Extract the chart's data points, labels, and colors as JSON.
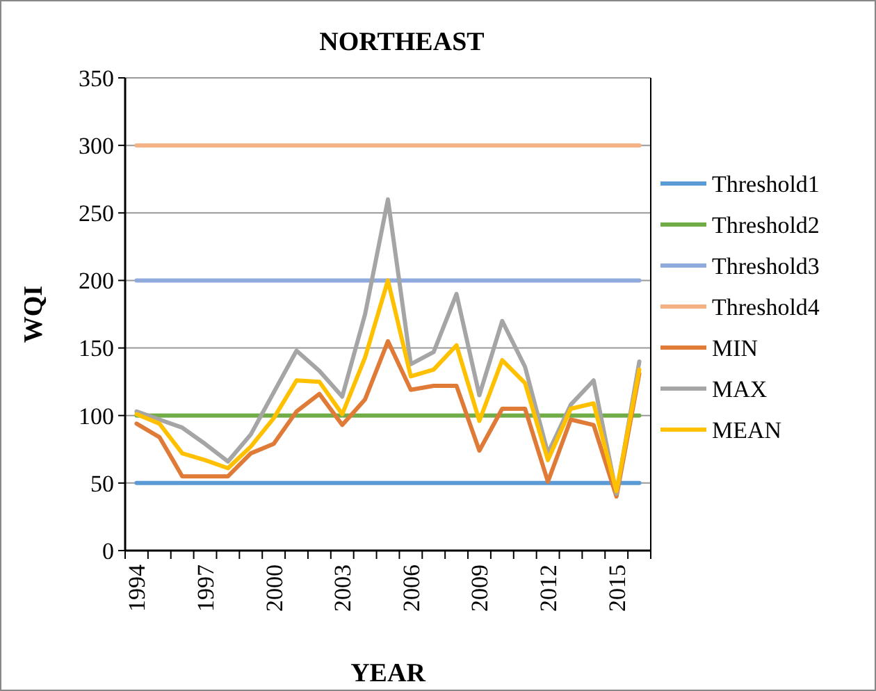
{
  "chart_data": {
    "type": "line",
    "title": "NORTHEAST",
    "xlabel": "YEAR",
    "ylabel": "WQI",
    "categories": [
      "1994",
      null,
      null,
      "1997",
      null,
      null,
      "2000",
      null,
      null,
      "2003",
      null,
      null,
      "2006",
      null,
      null,
      "2009",
      null,
      null,
      "2012",
      null,
      null,
      "2015",
      null
    ],
    "series": [
      {
        "name": "Threshold1",
        "color": "#5b9bd5",
        "values": [
          50,
          50,
          50,
          50,
          50,
          50,
          50,
          50,
          50,
          50,
          50,
          50,
          50,
          50,
          50,
          50,
          50,
          50,
          50,
          50,
          50,
          50,
          50
        ]
      },
      {
        "name": "Threshold2",
        "color": "#70ad47",
        "values": [
          100,
          100,
          100,
          100,
          100,
          100,
          100,
          100,
          100,
          100,
          100,
          100,
          100,
          100,
          100,
          100,
          100,
          100,
          100,
          100,
          100,
          100,
          100
        ]
      },
      {
        "name": "Threshold3",
        "color": "#8faadc",
        "values": [
          200,
          200,
          200,
          200,
          200,
          200,
          200,
          200,
          200,
          200,
          200,
          200,
          200,
          200,
          200,
          200,
          200,
          200,
          200,
          200,
          200,
          200,
          200
        ]
      },
      {
        "name": "Threshold4",
        "color": "#f4b183",
        "values": [
          300,
          300,
          300,
          300,
          300,
          300,
          300,
          300,
          300,
          300,
          300,
          300,
          300,
          300,
          300,
          300,
          300,
          300,
          300,
          300,
          300,
          300,
          300
        ]
      },
      {
        "name": "MIN",
        "color": "#e07a37",
        "values": [
          94,
          84,
          55,
          55,
          55,
          72,
          79,
          103,
          116,
          93,
          112,
          155,
          119,
          122,
          122,
          74,
          105,
          105,
          51,
          97,
          93,
          40,
          131
        ]
      },
      {
        "name": "MAX",
        "color": "#a5a5a5",
        "values": [
          103,
          97,
          91,
          79,
          66,
          86,
          117,
          148,
          133,
          114,
          175,
          260,
          138,
          147,
          190,
          115,
          170,
          136,
          72,
          108,
          126,
          42,
          140
        ]
      },
      {
        "name": "MEAN",
        "color": "#ffc000",
        "values": [
          101,
          94,
          72,
          67,
          61,
          77,
          98,
          126,
          125,
          101,
          143,
          200,
          129,
          134,
          152,
          96,
          141,
          124,
          67,
          105,
          109,
          44,
          134
        ]
      }
    ],
    "ylim": [
      0,
      350
    ],
    "yticks": [
      0,
      50,
      100,
      150,
      200,
      250,
      300,
      350
    ],
    "grid": "y",
    "legend": "right",
    "line_style": "solid",
    "marker": "none"
  }
}
